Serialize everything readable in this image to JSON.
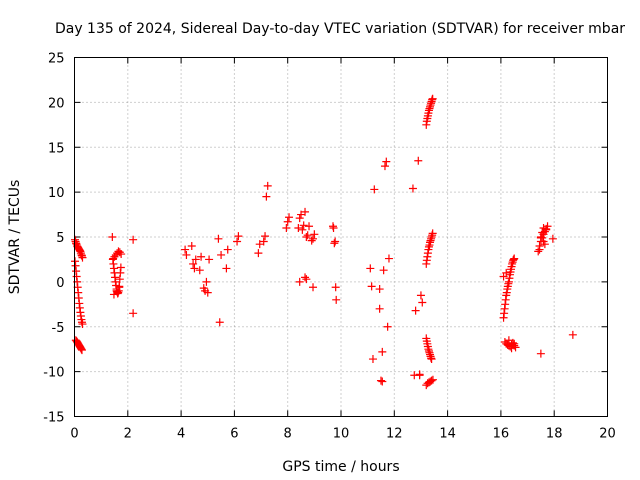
{
  "chart_data": {
    "type": "scatter",
    "title": "Day 135 of 2024, Sidereal Day-to-day VTEC variation (SDTVAR) for receiver mbar",
    "xlabel": "GPS time / hours",
    "ylabel": "SDTVAR / TECUs",
    "xlim": [
      0,
      20
    ],
    "ylim": [
      -15,
      25
    ],
    "xticks": [
      "0",
      "2",
      "4",
      "6",
      "8",
      "10",
      "12",
      "14",
      "16",
      "18",
      "20"
    ],
    "yticks": [
      "-15",
      "-10",
      "-5",
      "0",
      "5",
      "10",
      "15",
      "20",
      "25"
    ],
    "grid": true,
    "marker": "+",
    "marker_color": "#ff0000",
    "series": [
      {
        "name": "SDTVAR",
        "x": [
          0.02,
          0.04,
          0.06,
          0.08,
          0.1,
          0.12,
          0.14,
          0.16,
          0.18,
          0.2,
          0.22,
          0.24,
          0.26,
          0.28,
          0.3,
          0.02,
          0.04,
          0.06,
          0.08,
          0.1,
          0.12,
          0.14,
          0.16,
          0.18,
          0.2,
          0.22,
          0.24,
          0.26,
          0.28,
          0.3,
          0.05,
          0.08,
          0.1,
          0.12,
          0.14,
          0.16,
          0.18,
          0.2,
          0.22,
          0.24,
          0.26,
          0.28,
          1.42,
          1.44,
          1.46,
          1.48,
          1.5,
          1.52,
          1.54,
          1.56,
          1.58,
          1.6,
          1.62,
          1.64,
          1.66,
          1.68,
          1.7,
          1.72,
          1.74,
          1.45,
          1.5,
          1.55,
          1.6,
          1.65,
          1.7,
          1.75,
          1.48,
          1.58,
          1.68,
          2.2,
          2.2,
          4.15,
          4.2,
          4.4,
          4.45,
          4.5,
          4.55,
          4.7,
          4.75,
          4.85,
          4.9,
          4.95,
          5.0,
          5.05,
          5.4,
          5.45,
          5.5,
          5.7,
          5.75,
          6.1,
          6.15,
          6.9,
          6.95,
          7.1,
          7.15,
          7.2,
          7.25,
          7.95,
          8.0,
          8.05,
          8.4,
          8.45,
          8.5,
          8.55,
          8.6,
          8.65,
          8.7,
          8.75,
          8.8,
          8.9,
          8.95,
          9.0,
          8.45,
          8.65,
          8.7,
          8.95,
          9.7,
          9.72,
          9.75,
          9.78,
          9.8,
          9.82,
          11.1,
          11.15,
          11.2,
          11.25,
          11.45,
          11.5,
          11.55,
          11.6,
          11.65,
          11.7,
          11.75,
          11.8,
          11.45,
          11.55,
          12.7,
          12.75,
          12.9,
          12.95,
          13.0,
          13.05,
          12.8,
          12.95,
          13.2,
          13.22,
          13.24,
          13.26,
          13.28,
          13.3,
          13.32,
          13.34,
          13.36,
          13.38,
          13.4,
          13.42,
          13.44,
          13.2,
          13.22,
          13.24,
          13.26,
          13.28,
          13.3,
          13.32,
          13.34,
          13.36,
          13.38,
          13.4,
          13.42,
          13.44,
          13.2,
          13.22,
          13.24,
          13.26,
          13.28,
          13.3,
          13.32,
          13.34,
          13.36,
          13.38,
          13.4,
          13.2,
          13.25,
          13.3,
          13.35,
          13.4,
          13.45,
          16.1,
          16.12,
          16.14,
          16.16,
          16.18,
          16.2,
          16.22,
          16.24,
          16.26,
          16.28,
          16.3,
          16.32,
          16.34,
          16.36,
          16.38,
          16.4,
          16.42,
          16.44,
          16.46,
          16.48,
          16.5,
          16.15,
          16.2,
          16.25,
          16.3,
          16.35,
          16.4,
          16.45,
          16.5,
          16.55,
          16.1,
          16.2,
          16.3,
          16.4,
          16.5,
          17.4,
          17.45,
          17.5,
          17.55,
          17.6,
          17.65,
          17.7,
          17.75,
          17.45,
          17.5,
          17.55,
          17.6,
          17.65,
          17.7,
          17.5,
          17.6,
          17.95,
          17.5,
          18.7
        ],
        "y": [
          4.7,
          4.5,
          4.3,
          4.2,
          4.0,
          3.9,
          3.8,
          3.7,
          3.6,
          3.5,
          3.4,
          3.2,
          3.0,
          2.9,
          2.7,
          2.3,
          1.8,
          1.2,
          0.6,
          0.0,
          -0.6,
          -1.2,
          -1.8,
          -2.4,
          -2.9,
          -3.4,
          -3.8,
          -4.2,
          -4.5,
          -4.7,
          -6.5,
          -6.6,
          -6.7,
          -6.8,
          -6.9,
          -7.0,
          -7.1,
          -7.2,
          -7.3,
          -7.4,
          -7.5,
          -7.6,
          5.0,
          2.5,
          2.0,
          1.5,
          1.0,
          0.5,
          0.0,
          -0.4,
          -0.8,
          -1.1,
          -1.3,
          -1.2,
          -1.0,
          -0.5,
          0.3,
          1.0,
          1.6,
          2.6,
          2.8,
          3.0,
          3.2,
          3.4,
          3.3,
          3.1,
          -1.4,
          -1.0,
          -0.6,
          4.7,
          -3.5,
          3.6,
          3.0,
          4.0,
          2.0,
          1.5,
          2.5,
          1.3,
          2.8,
          -0.7,
          -1.0,
          0.0,
          -1.2,
          2.5,
          4.8,
          -4.5,
          3.0,
          1.5,
          3.6,
          4.5,
          5.1,
          3.2,
          4.2,
          4.5,
          5.1,
          9.5,
          10.7,
          6.0,
          6.7,
          7.2,
          6.0,
          7.1,
          7.5,
          5.8,
          6.3,
          7.8,
          5.0,
          5.2,
          6.2,
          4.6,
          4.8,
          5.3,
          0.0,
          0.5,
          0.3,
          -0.6,
          6.2,
          6.0,
          4.3,
          4.5,
          -0.6,
          -2.0,
          1.5,
          -0.5,
          -8.6,
          10.3,
          -0.8,
          -11.0,
          -11.1,
          1.3,
          12.9,
          13.4,
          -5.0,
          2.6,
          -3.0,
          -7.8,
          10.4,
          -10.4,
          13.5,
          -10.4,
          -1.5,
          -2.3,
          -3.2,
          -10.3,
          17.5,
          17.9,
          18.2,
          18.5,
          18.8,
          19.1,
          19.3,
          19.5,
          19.7,
          19.9,
          20.1,
          20.3,
          20.4,
          2.0,
          2.4,
          2.8,
          3.2,
          3.6,
          3.9,
          4.1,
          4.4,
          4.6,
          4.8,
          5.0,
          5.2,
          5.4,
          -6.3,
          -6.6,
          -6.9,
          -7.2,
          -7.5,
          -7.7,
          -7.9,
          -8.1,
          -8.3,
          -8.5,
          -8.6,
          -11.5,
          -11.3,
          -11.2,
          -11.1,
          -11.0,
          -10.9,
          -4.0,
          -3.5,
          -3.0,
          -2.5,
          -2.0,
          -1.5,
          -1.2,
          -0.8,
          -0.5,
          -0.2,
          0.0,
          0.4,
          0.8,
          1.1,
          1.4,
          1.7,
          2.0,
          2.2,
          2.4,
          2.5,
          2.6,
          -6.7,
          -6.9,
          -7.0,
          -7.1,
          -7.2,
          -7.0,
          -6.8,
          -7.1,
          -7.3,
          0.6,
          1.0,
          -6.5,
          -7.4,
          -6.9,
          3.4,
          4.0,
          4.5,
          4.9,
          5.3,
          5.6,
          5.9,
          6.2,
          3.6,
          5.0,
          5.5,
          6.0,
          4.2,
          5.8,
          4.9,
          4.5,
          4.8,
          -8.0,
          -5.9
        ]
      }
    ]
  }
}
